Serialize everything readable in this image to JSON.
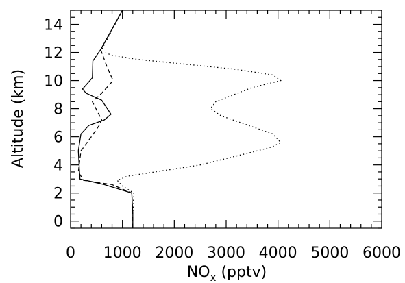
{
  "chart_data": {
    "type": "line",
    "title": "",
    "xlabel_main": "NO",
    "xlabel_sub": "x",
    "xlabel_suffix": " (pptv)",
    "ylabel": "Altitude (km)",
    "xlim": [
      0,
      6000
    ],
    "ylim": [
      -0.5,
      15
    ],
    "xticks": [
      0,
      1000,
      2000,
      3000,
      4000,
      5000,
      6000
    ],
    "yticks": [
      0,
      2,
      4,
      6,
      8,
      10,
      12,
      14
    ],
    "grid": false,
    "series": [
      {
        "style": "solid",
        "x": [
          1200,
          1200,
          1180,
          650,
          180,
          150,
          200,
          350,
          650,
          780,
          600,
          300,
          230,
          420,
          430,
          580,
          1000
        ],
        "y": [
          -0.5,
          0.5,
          2.0,
          2.6,
          3.0,
          5.0,
          6.2,
          6.8,
          7.2,
          7.6,
          8.6,
          9.1,
          9.4,
          10.2,
          11.4,
          12.2,
          15.0
        ]
      },
      {
        "style": "dashed",
        "x": [
          1200,
          1200,
          1180,
          800,
          250,
          150,
          200,
          400,
          550,
          600,
          420,
          600,
          820,
          700,
          600,
          580,
          1000
        ],
        "y": [
          -0.5,
          0.5,
          2.0,
          2.6,
          2.9,
          3.5,
          5.0,
          6.0,
          6.8,
          7.2,
          8.5,
          9.1,
          10.0,
          11.0,
          12.0,
          12.2,
          15.0
        ]
      },
      {
        "style": "dotted",
        "x": [
          1200,
          1200,
          1220,
          1000,
          900,
          1100,
          2500,
          3600,
          3900,
          4050,
          3900,
          2900,
          2700,
          2800,
          3500,
          4050,
          3900,
          3200,
          1300,
          800,
          650,
          600,
          1000
        ],
        "y": [
          -0.5,
          0.5,
          2.0,
          2.5,
          2.9,
          3.2,
          4.0,
          5.0,
          5.3,
          5.6,
          6.2,
          7.5,
          8.0,
          8.5,
          9.5,
          10.0,
          10.4,
          10.8,
          11.5,
          11.8,
          12.0,
          12.2,
          15.0
        ]
      }
    ]
  }
}
